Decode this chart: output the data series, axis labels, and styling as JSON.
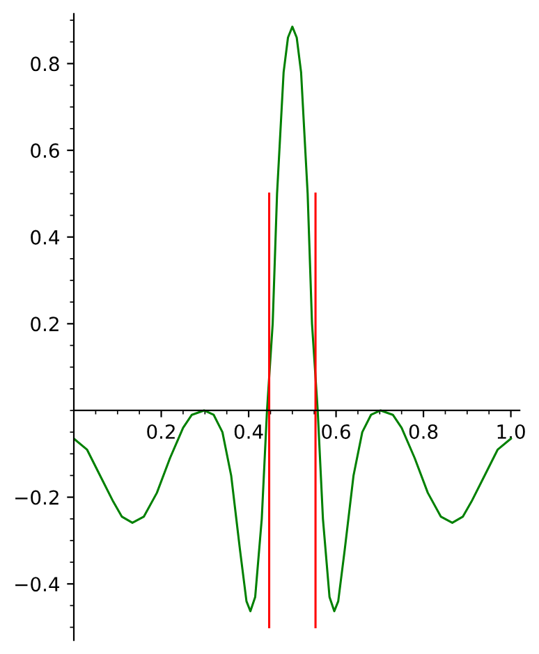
{
  "chart_data": {
    "type": "line",
    "xlim": [
      0,
      1.02
    ],
    "ylim": [
      -0.53,
      0.915
    ],
    "xticks": [
      0.2,
      0.4,
      0.6,
      0.8,
      {
        "value": 1.0,
        "label": "1.0"
      }
    ],
    "yticks": [
      {
        "value": -0.4,
        "label": "−0.4"
      },
      {
        "value": -0.2,
        "label": "−0.2"
      },
      0.2,
      0.4,
      0.6,
      0.8
    ],
    "grid": false,
    "marker": "none",
    "line_style": "solid",
    "series": [
      {
        "color": "#008000",
        "x": [
          0,
          0.03,
          0.06,
          0.09,
          0.11,
          0.134,
          0.16,
          0.19,
          0.22,
          0.25,
          0.27,
          0.298,
          0.32,
          0.34,
          0.36,
          0.38,
          0.395,
          0.404,
          0.415,
          0.43,
          0.442,
          0.455,
          0.465,
          0.48,
          0.49,
          0.5,
          0.51,
          0.52,
          0.535,
          0.545,
          0.558,
          0.57,
          0.585,
          0.596,
          0.605,
          0.62,
          0.64,
          0.66,
          0.68,
          0.702,
          0.73,
          0.75,
          0.78,
          0.81,
          0.84,
          0.866,
          0.89,
          0.91,
          0.94,
          0.97,
          1.0
        ],
        "values": [
          -0.065,
          -0.09,
          -0.15,
          -0.21,
          -0.245,
          -0.259,
          -0.245,
          -0.19,
          -0.11,
          -0.04,
          -0.01,
          0,
          -0.01,
          -0.05,
          -0.15,
          -0.32,
          -0.44,
          -0.463,
          -0.43,
          -0.25,
          0,
          0.2,
          0.5,
          0.78,
          0.86,
          0.885,
          0.86,
          0.78,
          0.5,
          0.2,
          0,
          -0.25,
          -0.43,
          -0.463,
          -0.44,
          -0.32,
          -0.15,
          -0.05,
          -0.01,
          0,
          -0.01,
          -0.04,
          -0.11,
          -0.19,
          -0.245,
          -0.259,
          -0.245,
          -0.21,
          -0.15,
          -0.09,
          -0.065
        ]
      },
      {
        "color": "#ff0000",
        "x": [
          0.447,
          0.447
        ],
        "values": [
          0.5,
          -0.5
        ]
      },
      {
        "color": "#ff0000",
        "x": [
          0.553,
          0.553
        ],
        "values": [
          0.5,
          -0.5
        ]
      }
    ]
  }
}
